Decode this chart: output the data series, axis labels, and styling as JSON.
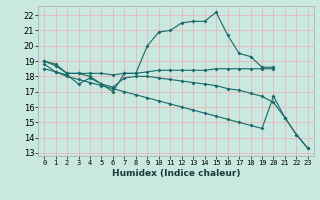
{
  "xlabel": "Humidex (Indice chaleur)",
  "bg_color": "#c8e8e0",
  "grid_color": "#e8b8b8",
  "line_color": "#1a6868",
  "xlim": [
    -0.5,
    23.5
  ],
  "ylim": [
    12.8,
    22.6
  ],
  "yticks": [
    13,
    14,
    15,
    16,
    17,
    18,
    19,
    20,
    21,
    22
  ],
  "xticks": [
    0,
    1,
    2,
    3,
    4,
    5,
    6,
    7,
    8,
    9,
    10,
    11,
    12,
    13,
    14,
    15,
    16,
    17,
    18,
    19,
    20,
    21,
    22,
    23
  ],
  "series": [
    {
      "x": [
        0,
        1,
        2,
        3,
        4,
        5,
        6,
        7,
        8,
        9,
        10,
        11,
        12,
        13,
        14,
        15,
        16,
        17,
        18,
        19,
        20
      ],
      "y": [
        19.0,
        18.7,
        18.2,
        18.2,
        18.0,
        17.5,
        17.0,
        18.2,
        18.2,
        20.0,
        20.9,
        21.0,
        21.5,
        21.6,
        21.6,
        22.2,
        20.7,
        19.5,
        19.3,
        18.6,
        18.6
      ]
    },
    {
      "x": [
        0,
        1,
        2,
        3,
        4,
        5,
        6,
        7,
        8,
        9,
        10,
        11,
        12,
        13,
        14,
        15,
        16,
        17,
        18,
        19,
        20
      ],
      "y": [
        19.0,
        18.8,
        18.2,
        18.2,
        18.2,
        18.2,
        18.1,
        18.2,
        18.2,
        18.3,
        18.4,
        18.4,
        18.4,
        18.4,
        18.4,
        18.5,
        18.5,
        18.5,
        18.5,
        18.5,
        18.5
      ]
    },
    {
      "x": [
        0,
        1,
        2,
        3,
        4,
        5,
        6,
        7,
        8,
        9,
        10,
        11,
        12,
        13,
        14,
        15,
        16,
        17,
        18,
        19,
        20,
        21,
        22,
        23
      ],
      "y": [
        18.8,
        18.3,
        18.1,
        17.5,
        17.9,
        17.5,
        17.3,
        17.9,
        18.0,
        18.0,
        17.9,
        17.8,
        17.7,
        17.6,
        17.5,
        17.4,
        17.2,
        17.1,
        16.9,
        16.7,
        16.3,
        15.3,
        14.2,
        13.3
      ]
    },
    {
      "x": [
        0,
        1,
        2,
        3,
        4,
        5,
        6,
        7,
        8,
        9,
        10,
        11,
        12,
        13,
        14,
        15,
        16,
        17,
        18,
        19,
        20,
        21,
        22,
        23
      ],
      "y": [
        18.5,
        18.3,
        18.0,
        17.8,
        17.6,
        17.4,
        17.2,
        17.0,
        16.8,
        16.6,
        16.4,
        16.2,
        16.0,
        15.8,
        15.6,
        15.4,
        15.2,
        15.0,
        14.8,
        14.6,
        16.7,
        15.3,
        14.2,
        13.3
      ]
    }
  ]
}
